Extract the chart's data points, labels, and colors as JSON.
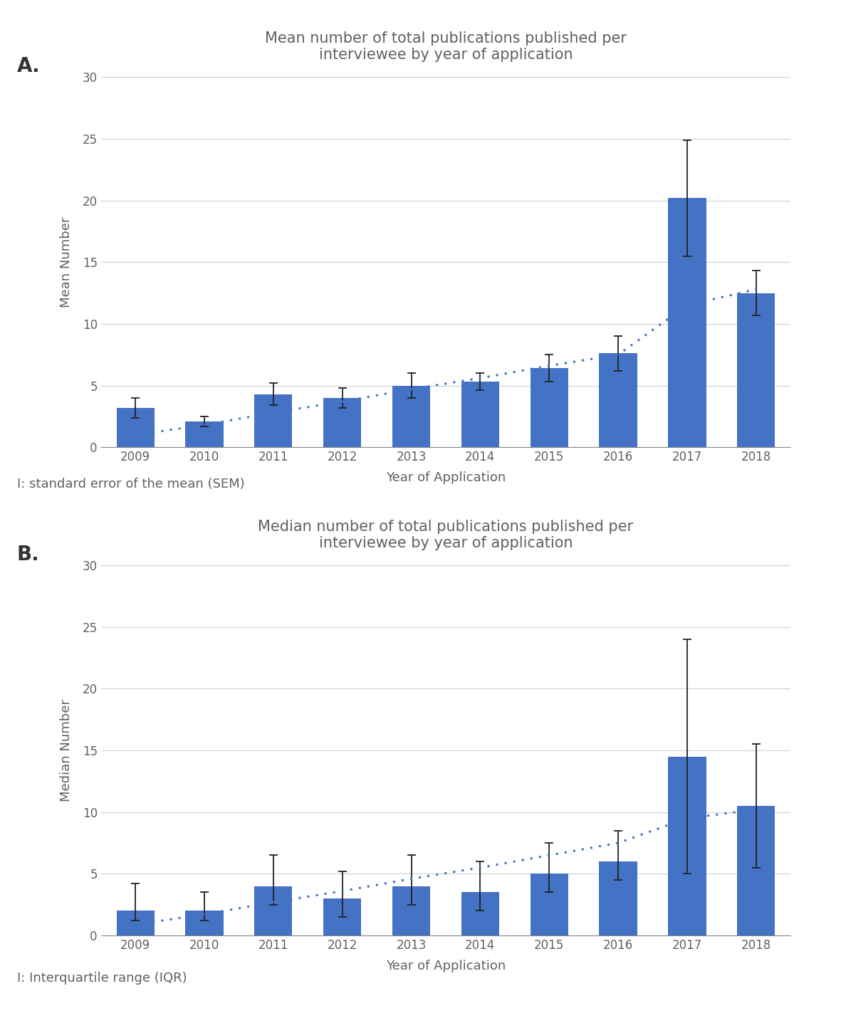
{
  "years": [
    2009,
    2010,
    2011,
    2012,
    2013,
    2014,
    2015,
    2016,
    2017,
    2018
  ],
  "mean_values": [
    3.2,
    2.1,
    4.3,
    4.0,
    5.0,
    5.3,
    6.4,
    7.6,
    20.2,
    12.5
  ],
  "mean_errors": [
    0.8,
    0.4,
    0.9,
    0.8,
    1.0,
    0.7,
    1.1,
    1.4,
    4.7,
    1.8
  ],
  "mean_trend": [
    1.0,
    1.8,
    2.8,
    3.7,
    4.7,
    5.6,
    6.6,
    7.5,
    11.5,
    12.8
  ],
  "median_values": [
    2.0,
    2.0,
    4.0,
    3.0,
    4.0,
    3.5,
    5.0,
    6.0,
    14.5,
    10.5
  ],
  "median_errors_low": [
    0.8,
    0.8,
    1.5,
    1.5,
    1.5,
    1.5,
    1.5,
    1.5,
    9.5,
    5.0
  ],
  "median_errors_high": [
    2.2,
    1.5,
    2.5,
    2.2,
    2.5,
    2.5,
    2.5,
    2.5,
    9.5,
    5.0
  ],
  "median_trend": [
    0.9,
    1.7,
    2.7,
    3.6,
    4.6,
    5.5,
    6.5,
    7.5,
    9.5,
    10.2
  ],
  "bar_color": "#4472C4",
  "trend_color": "#4472C4",
  "background_color": "#ffffff",
  "grid_color": "#d0d0d0",
  "axis_color": "#888888",
  "text_color": "#606060",
  "panel_label_color": "#333333",
  "errorbar_color": "#222222",
  "title_A": "Mean number of total publications published per\ninterviewee by year of application",
  "ylabel_A": "Mean Number",
  "caption_A": "I: standard error of the mean (SEM)",
  "title_B": "Median number of total publications published per\ninterviewee by year of application",
  "ylabel_B": "Median Number",
  "caption_B": "I: Interquartile range (IQR)",
  "xlabel": "Year of Application",
  "ylim": [
    0,
    30
  ],
  "yticks": [
    0,
    5,
    10,
    15,
    20,
    25,
    30
  ],
  "title_fontsize": 15,
  "label_fontsize": 13,
  "tick_fontsize": 12,
  "caption_fontsize": 13,
  "panel_label_fontsize": 20
}
